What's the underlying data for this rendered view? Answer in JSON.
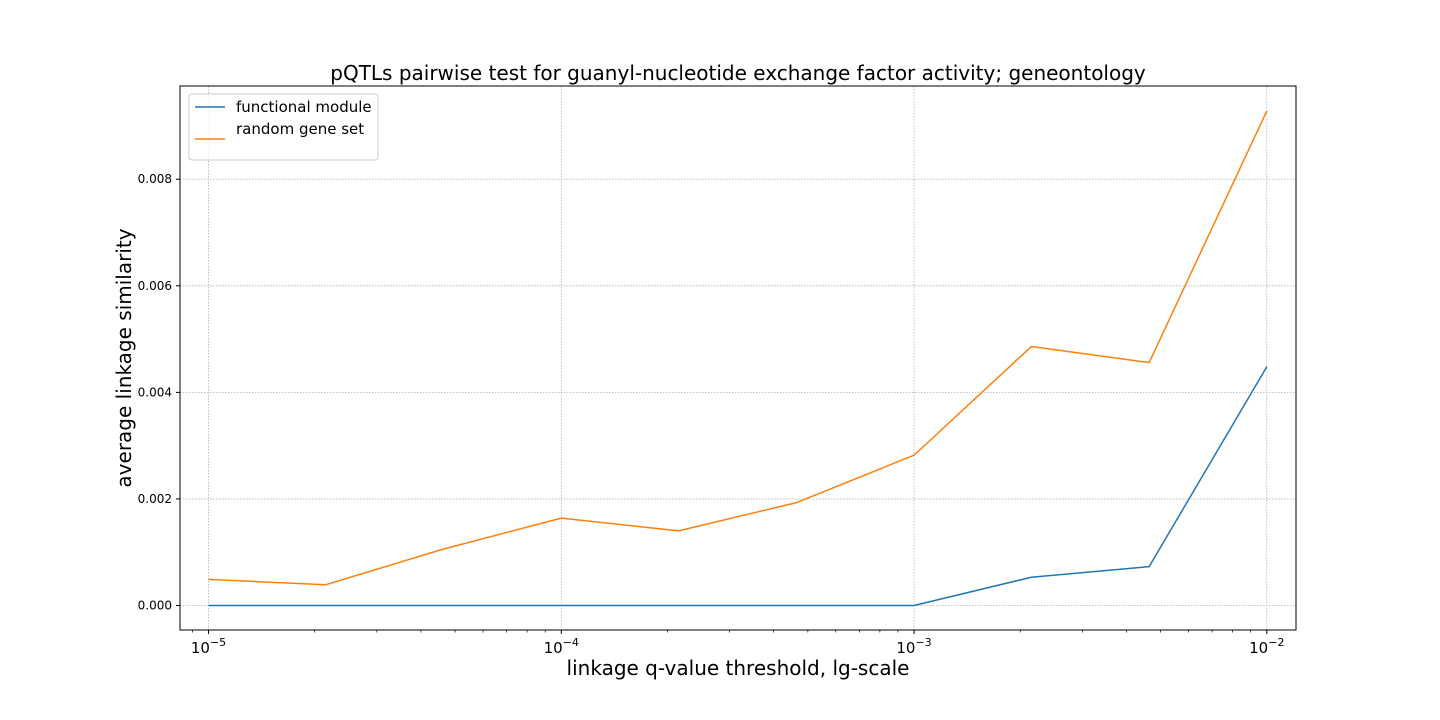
{
  "chart_data": {
    "type": "line",
    "title": "pQTLs pairwise test for guanyl-nucleotide exchange factor activity; geneontology",
    "xlabel": "linkage q-value threshold, lg-scale",
    "ylabel": "average linkage similarity",
    "x_scale": "log",
    "x": [
      1e-05,
      2.15e-05,
      4.64e-05,
      0.0001,
      0.000215,
      0.000464,
      0.001,
      0.00215,
      0.00464,
      0.01
    ],
    "xlim": [
      8.3e-06,
      0.0121
    ],
    "ylim": [
      -0.00046,
      0.00975
    ],
    "series": [
      {
        "name": "functional module",
        "color": "#1f77b4",
        "values": [
          0.0,
          0.0,
          0.0,
          0.0,
          0.0,
          0.0,
          0.0,
          0.00053,
          0.00073,
          0.00448
        ]
      },
      {
        "name": "random gene set",
        "color": "#ff7f0e",
        "values": [
          0.00049,
          0.00039,
          0.00106,
          0.00164,
          0.0014,
          0.00193,
          0.00282,
          0.00486,
          0.00456,
          0.00928
        ]
      }
    ],
    "y_ticks": [
      {
        "value": 0.0,
        "label": "0.000"
      },
      {
        "value": 0.002,
        "label": "0.002"
      },
      {
        "value": 0.004,
        "label": "0.004"
      },
      {
        "value": 0.006,
        "label": "0.006"
      },
      {
        "value": 0.008,
        "label": "0.008"
      }
    ],
    "x_ticks": [
      {
        "value": 1e-05,
        "base": "10",
        "exp": "−5"
      },
      {
        "value": 0.0001,
        "base": "10",
        "exp": "−4"
      },
      {
        "value": 0.001,
        "base": "10",
        "exp": "−3"
      },
      {
        "value": 0.01,
        "base": "10",
        "exp": "−2"
      }
    ],
    "grid": true,
    "legend_position": "top-left"
  }
}
